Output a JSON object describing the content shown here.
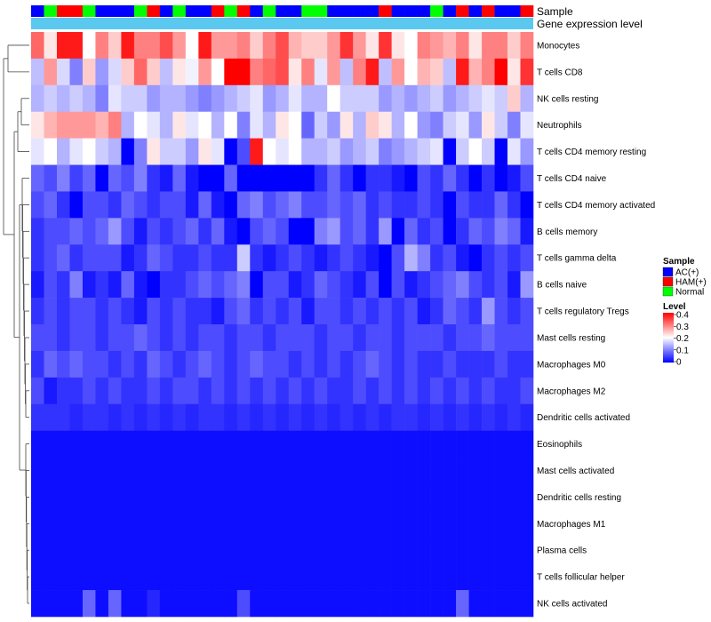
{
  "chart_data": {
    "type": "heatmap",
    "rows": [
      "Monocytes",
      "T cells CD8",
      "NK cells resting",
      "Neutrophils",
      "T cells CD4 memory resting",
      "T cells CD4 naive",
      "T cells CD4 memory activated",
      "B cells memory",
      "T cells gamma delta",
      "B cells naive",
      "T cells regulatory  Tregs",
      "Mast cells resting",
      "Macrophages M0",
      "Macrophages M2",
      "Dendritic cells activated",
      "Eosinophils",
      "Mast cells activated",
      "Dendritic cells resting",
      "Macrophages M1",
      "Plasma cells",
      "T cells follicular helper",
      "NK cells activated"
    ],
    "annotations": {
      "sample_label": "Sample",
      "expression_label": "Gene expression level"
    },
    "sample_groups": [
      "A",
      "N",
      "H",
      "H",
      "N",
      "A",
      "A",
      "A",
      "N",
      "H",
      "A",
      "N",
      "A",
      "A",
      "H",
      "N",
      "H",
      "A",
      "N",
      "A",
      "A",
      "N",
      "N",
      "A",
      "A",
      "A",
      "A",
      "H",
      "A",
      "A",
      "A",
      "N",
      "A",
      "H",
      "A",
      "H",
      "A",
      "A",
      "H"
    ],
    "values": [
      [
        0.32,
        0.22,
        0.38,
        0.38,
        0.2,
        0.3,
        0.24,
        0.38,
        0.3,
        0.3,
        0.34,
        0.28,
        0.2,
        0.38,
        0.28,
        0.28,
        0.3,
        0.24,
        0.3,
        0.34,
        0.26,
        0.24,
        0.24,
        0.28,
        0.36,
        0.28,
        0.22,
        0.36,
        0.22,
        0.2,
        0.3,
        0.28,
        0.26,
        0.3,
        0.22,
        0.3,
        0.3,
        0.24,
        0.3
      ],
      [
        0.15,
        0.28,
        0.17,
        0.1,
        0.24,
        0.12,
        0.17,
        0.24,
        0.32,
        0.24,
        0.15,
        0.22,
        0.19,
        0.28,
        0.2,
        0.4,
        0.4,
        0.3,
        0.32,
        0.34,
        0.22,
        0.3,
        0.18,
        0.28,
        0.15,
        0.3,
        0.38,
        0.15,
        0.28,
        0.2,
        0.26,
        0.24,
        0.15,
        0.38,
        0.26,
        0.3,
        0.4,
        0.22,
        0.36
      ],
      [
        0.14,
        0.16,
        0.14,
        0.16,
        0.14,
        0.1,
        0.18,
        0.16,
        0.16,
        0.12,
        0.14,
        0.14,
        0.12,
        0.1,
        0.12,
        0.14,
        0.16,
        0.18,
        0.12,
        0.14,
        0.18,
        0.14,
        0.14,
        0.2,
        0.16,
        0.16,
        0.16,
        0.12,
        0.14,
        0.12,
        0.14,
        0.16,
        0.12,
        0.14,
        0.16,
        0.18,
        0.16,
        0.24,
        0.14
      ],
      [
        0.22,
        0.26,
        0.28,
        0.28,
        0.28,
        0.26,
        0.3,
        0.14,
        0.2,
        0.18,
        0.14,
        0.22,
        0.18,
        0.2,
        0.14,
        0.2,
        0.1,
        0.18,
        0.14,
        0.22,
        0.2,
        0.08,
        0.16,
        0.12,
        0.22,
        0.14,
        0.24,
        0.22,
        0.14,
        0.2,
        0.12,
        0.1,
        0.16,
        0.18,
        0.12,
        0.22,
        0.16,
        0.1,
        0.18
      ],
      [
        0.18,
        0.2,
        0.14,
        0.18,
        0.2,
        0.16,
        0.14,
        0.0,
        0.1,
        0.22,
        0.16,
        0.16,
        0.12,
        0.22,
        0.18,
        0.0,
        0.06,
        0.38,
        0.2,
        0.18,
        0.2,
        0.14,
        0.14,
        0.16,
        0.12,
        0.14,
        0.16,
        0.1,
        0.12,
        0.14,
        0.16,
        0.18,
        0.0,
        0.16,
        0.2,
        0.16,
        0.0,
        0.18,
        0.12
      ],
      [
        0.08,
        0.06,
        0.1,
        0.05,
        0.08,
        0.0,
        0.08,
        0.06,
        0.1,
        0.04,
        0.02,
        0.08,
        0.02,
        0.0,
        0.0,
        0.08,
        0.0,
        0.0,
        0.0,
        0.0,
        0.0,
        0.0,
        0.04,
        0.08,
        0.04,
        0.0,
        0.04,
        0.04,
        0.02,
        0.0,
        0.06,
        0.04,
        0.08,
        0.04,
        0.0,
        0.04,
        0.0,
        0.02,
        0.06
      ],
      [
        0.06,
        0.08,
        0.04,
        0.0,
        0.06,
        0.06,
        0.04,
        0.08,
        0.06,
        0.04,
        0.06,
        0.06,
        0.02,
        0.08,
        0.02,
        0.0,
        0.08,
        0.1,
        0.06,
        0.08,
        0.1,
        0.06,
        0.06,
        0.08,
        0.06,
        0.08,
        0.04,
        0.06,
        0.04,
        0.04,
        0.06,
        0.04,
        0.0,
        0.06,
        0.04,
        0.04,
        0.08,
        0.04,
        0.0
      ],
      [
        0.04,
        0.06,
        0.06,
        0.08,
        0.06,
        0.08,
        0.12,
        0.06,
        0.02,
        0.06,
        0.04,
        0.06,
        0.08,
        0.04,
        0.08,
        0.02,
        0.0,
        0.06,
        0.08,
        0.06,
        0.0,
        0.0,
        0.1,
        0.12,
        0.06,
        0.08,
        0.04,
        0.12,
        0.0,
        0.08,
        0.04,
        0.06,
        0.0,
        0.04,
        0.08,
        0.06,
        0.1,
        0.08,
        0.02
      ],
      [
        0.04,
        0.06,
        0.08,
        0.04,
        0.06,
        0.06,
        0.06,
        0.02,
        0.04,
        0.08,
        0.06,
        0.04,
        0.04,
        0.06,
        0.04,
        0.04,
        0.16,
        0.04,
        0.02,
        0.04,
        0.06,
        0.04,
        0.02,
        0.04,
        0.06,
        0.04,
        0.02,
        0.0,
        0.06,
        0.14,
        0.1,
        0.04,
        0.06,
        0.02,
        0.0,
        0.04,
        0.06,
        0.04,
        0.06
      ],
      [
        0.02,
        0.06,
        0.04,
        0.1,
        0.02,
        0.04,
        0.02,
        0.08,
        0.02,
        0.0,
        0.04,
        0.04,
        0.06,
        0.08,
        0.06,
        0.08,
        0.1,
        0.0,
        0.06,
        0.06,
        0.02,
        0.04,
        0.08,
        0.06,
        0.04,
        0.02,
        0.06,
        0.0,
        0.06,
        0.02,
        0.04,
        0.06,
        0.08,
        0.1,
        0.06,
        0.04,
        0.06,
        0.02,
        0.12
      ],
      [
        0.04,
        0.06,
        0.04,
        0.06,
        0.06,
        0.04,
        0.06,
        0.04,
        0.02,
        0.06,
        0.04,
        0.06,
        0.04,
        0.04,
        0.02,
        0.06,
        0.08,
        0.04,
        0.06,
        0.04,
        0.06,
        0.02,
        0.06,
        0.06,
        0.04,
        0.06,
        0.04,
        0.06,
        0.04,
        0.06,
        0.02,
        0.04,
        0.08,
        0.06,
        0.04,
        0.12,
        0.06,
        0.04,
        0.06
      ],
      [
        0.06,
        0.06,
        0.04,
        0.06,
        0.06,
        0.04,
        0.06,
        0.06,
        0.08,
        0.06,
        0.04,
        0.06,
        0.04,
        0.06,
        0.06,
        0.04,
        0.06,
        0.06,
        0.04,
        0.06,
        0.06,
        0.06,
        0.04,
        0.06,
        0.06,
        0.04,
        0.06,
        0.06,
        0.04,
        0.06,
        0.06,
        0.06,
        0.04,
        0.06,
        0.06,
        0.08,
        0.06,
        0.06,
        0.06
      ],
      [
        0.04,
        0.08,
        0.06,
        0.08,
        0.06,
        0.06,
        0.04,
        0.06,
        0.04,
        0.08,
        0.06,
        0.04,
        0.06,
        0.08,
        0.06,
        0.04,
        0.06,
        0.08,
        0.06,
        0.06,
        0.04,
        0.06,
        0.04,
        0.06,
        0.04,
        0.06,
        0.08,
        0.06,
        0.04,
        0.06,
        0.04,
        0.04,
        0.06,
        0.04,
        0.04,
        0.04,
        0.06,
        0.04,
        0.04
      ],
      [
        0.06,
        0.02,
        0.04,
        0.04,
        0.06,
        0.04,
        0.06,
        0.04,
        0.04,
        0.06,
        0.04,
        0.06,
        0.06,
        0.04,
        0.06,
        0.04,
        0.06,
        0.04,
        0.06,
        0.04,
        0.06,
        0.04,
        0.06,
        0.04,
        0.04,
        0.06,
        0.04,
        0.06,
        0.04,
        0.06,
        0.04,
        0.06,
        0.04,
        0.06,
        0.04,
        0.06,
        0.04,
        0.04,
        0.06
      ],
      [
        0.04,
        0.04,
        0.04,
        0.03,
        0.04,
        0.04,
        0.03,
        0.04,
        0.03,
        0.04,
        0.03,
        0.04,
        0.03,
        0.04,
        0.04,
        0.03,
        0.04,
        0.03,
        0.04,
        0.03,
        0.04,
        0.03,
        0.04,
        0.03,
        0.04,
        0.03,
        0.04,
        0.03,
        0.04,
        0.04,
        0.03,
        0.04,
        0.03,
        0.04,
        0.03,
        0.04,
        0.03,
        0.04,
        0.03
      ],
      [
        0.01,
        0.01,
        0.01,
        0.01,
        0.01,
        0.01,
        0.01,
        0.01,
        0.01,
        0.01,
        0.01,
        0.01,
        0.01,
        0.01,
        0.01,
        0.01,
        0.01,
        0.01,
        0.01,
        0.01,
        0.01,
        0.01,
        0.01,
        0.01,
        0.01,
        0.01,
        0.01,
        0.01,
        0.01,
        0.01,
        0.01,
        0.01,
        0.01,
        0.01,
        0.01,
        0.01,
        0.01,
        0.01,
        0.01
      ],
      [
        0.01,
        0.01,
        0.01,
        0.01,
        0.01,
        0.01,
        0.01,
        0.01,
        0.01,
        0.01,
        0.01,
        0.01,
        0.01,
        0.01,
        0.01,
        0.01,
        0.01,
        0.01,
        0.01,
        0.01,
        0.01,
        0.01,
        0.01,
        0.01,
        0.01,
        0.01,
        0.01,
        0.01,
        0.01,
        0.01,
        0.01,
        0.01,
        0.01,
        0.01,
        0.01,
        0.01,
        0.01,
        0.01,
        0.01
      ],
      [
        0.01,
        0.01,
        0.01,
        0.01,
        0.01,
        0.01,
        0.01,
        0.01,
        0.01,
        0.01,
        0.01,
        0.01,
        0.01,
        0.01,
        0.01,
        0.01,
        0.01,
        0.01,
        0.01,
        0.01,
        0.01,
        0.01,
        0.01,
        0.01,
        0.01,
        0.01,
        0.01,
        0.01,
        0.01,
        0.01,
        0.01,
        0.01,
        0.01,
        0.01,
        0.01,
        0.01,
        0.01,
        0.01,
        0.01
      ],
      [
        0.01,
        0.01,
        0.01,
        0.01,
        0.01,
        0.01,
        0.01,
        0.01,
        0.01,
        0.01,
        0.01,
        0.01,
        0.01,
        0.01,
        0.01,
        0.01,
        0.01,
        0.01,
        0.01,
        0.01,
        0.01,
        0.01,
        0.01,
        0.01,
        0.01,
        0.01,
        0.01,
        0.01,
        0.01,
        0.01,
        0.01,
        0.01,
        0.01,
        0.01,
        0.01,
        0.01,
        0.01,
        0.01,
        0.01
      ],
      [
        0.01,
        0.01,
        0.01,
        0.01,
        0.01,
        0.01,
        0.01,
        0.01,
        0.01,
        0.01,
        0.01,
        0.01,
        0.01,
        0.01,
        0.01,
        0.01,
        0.01,
        0.01,
        0.01,
        0.01,
        0.01,
        0.01,
        0.01,
        0.01,
        0.01,
        0.01,
        0.01,
        0.01,
        0.01,
        0.01,
        0.01,
        0.01,
        0.01,
        0.01,
        0.01,
        0.01,
        0.01,
        0.01,
        0.01
      ],
      [
        0.01,
        0.01,
        0.01,
        0.01,
        0.01,
        0.01,
        0.01,
        0.01,
        0.01,
        0.01,
        0.01,
        0.01,
        0.01,
        0.01,
        0.01,
        0.01,
        0.01,
        0.01,
        0.01,
        0.01,
        0.01,
        0.01,
        0.01,
        0.01,
        0.01,
        0.01,
        0.01,
        0.01,
        0.01,
        0.01,
        0.01,
        0.01,
        0.01,
        0.01,
        0.01,
        0.01,
        0.01,
        0.01,
        0.01
      ],
      [
        0.01,
        0.01,
        0.01,
        0.01,
        0.08,
        0.01,
        0.08,
        0.01,
        0.01,
        0.03,
        0.01,
        0.01,
        0.01,
        0.01,
        0.01,
        0.01,
        0.06,
        0.01,
        0.01,
        0.01,
        0.01,
        0.01,
        0.01,
        0.01,
        0.01,
        0.01,
        0.01,
        0.01,
        0.01,
        0.01,
        0.01,
        0.01,
        0.01,
        0.08,
        0.01,
        0.01,
        0.01,
        0.01,
        0.01
      ]
    ],
    "legend": {
      "sample_title": "Sample",
      "groups": [
        {
          "key": "A",
          "label": "AC(+)",
          "color": "#0000ff"
        },
        {
          "key": "H",
          "label": "HAM(+)",
          "color": "#ff0000"
        },
        {
          "key": "N",
          "label": "Normal",
          "color": "#00ff00"
        }
      ],
      "level_title": "Level",
      "level_ticks": [
        "0.4",
        "0.3",
        "0.2",
        "0.1",
        "0"
      ],
      "level_range": [
        0,
        0.4
      ]
    },
    "expression_bar_color": "#5bc8f0",
    "colors": {
      "low": "#0000ff",
      "mid": "#ffffff",
      "high": "#ff0000"
    },
    "legend_placement": "right",
    "dendrogram": "rows"
  }
}
